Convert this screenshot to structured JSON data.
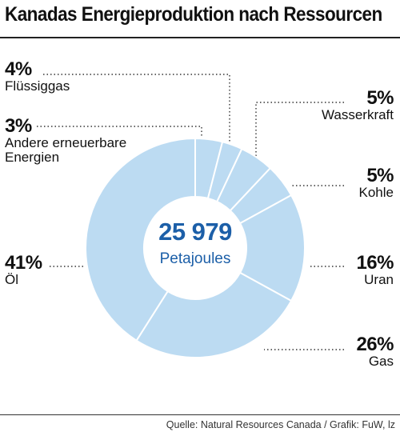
{
  "title": "Kanadas Energieproduktion nach Ressourcen",
  "source": "Quelle: Natural Resources Canada / Grafik: FuW, lz",
  "center": {
    "value": "25 979",
    "unit": "Petajoules"
  },
  "colors": {
    "slice": "#bcdbf2",
    "text_accent": "#1c5fa8",
    "border": "#ffffff"
  },
  "chart_data": {
    "type": "pie",
    "style": "donut",
    "total": 25979,
    "unit": "Petajoules",
    "categories": [
      "Flüssiggas",
      "Andere erneuerbare Energien",
      "Wasserkraft",
      "Kohle",
      "Uran",
      "Gas",
      "Öl"
    ],
    "values": [
      4,
      3,
      5,
      5,
      16,
      26,
      41
    ],
    "value_labels": [
      "4%",
      "3%",
      "5%",
      "5%",
      "16%",
      "26%",
      "41%"
    ],
    "title": "Kanadas Energieproduktion nach Ressourcen"
  }
}
